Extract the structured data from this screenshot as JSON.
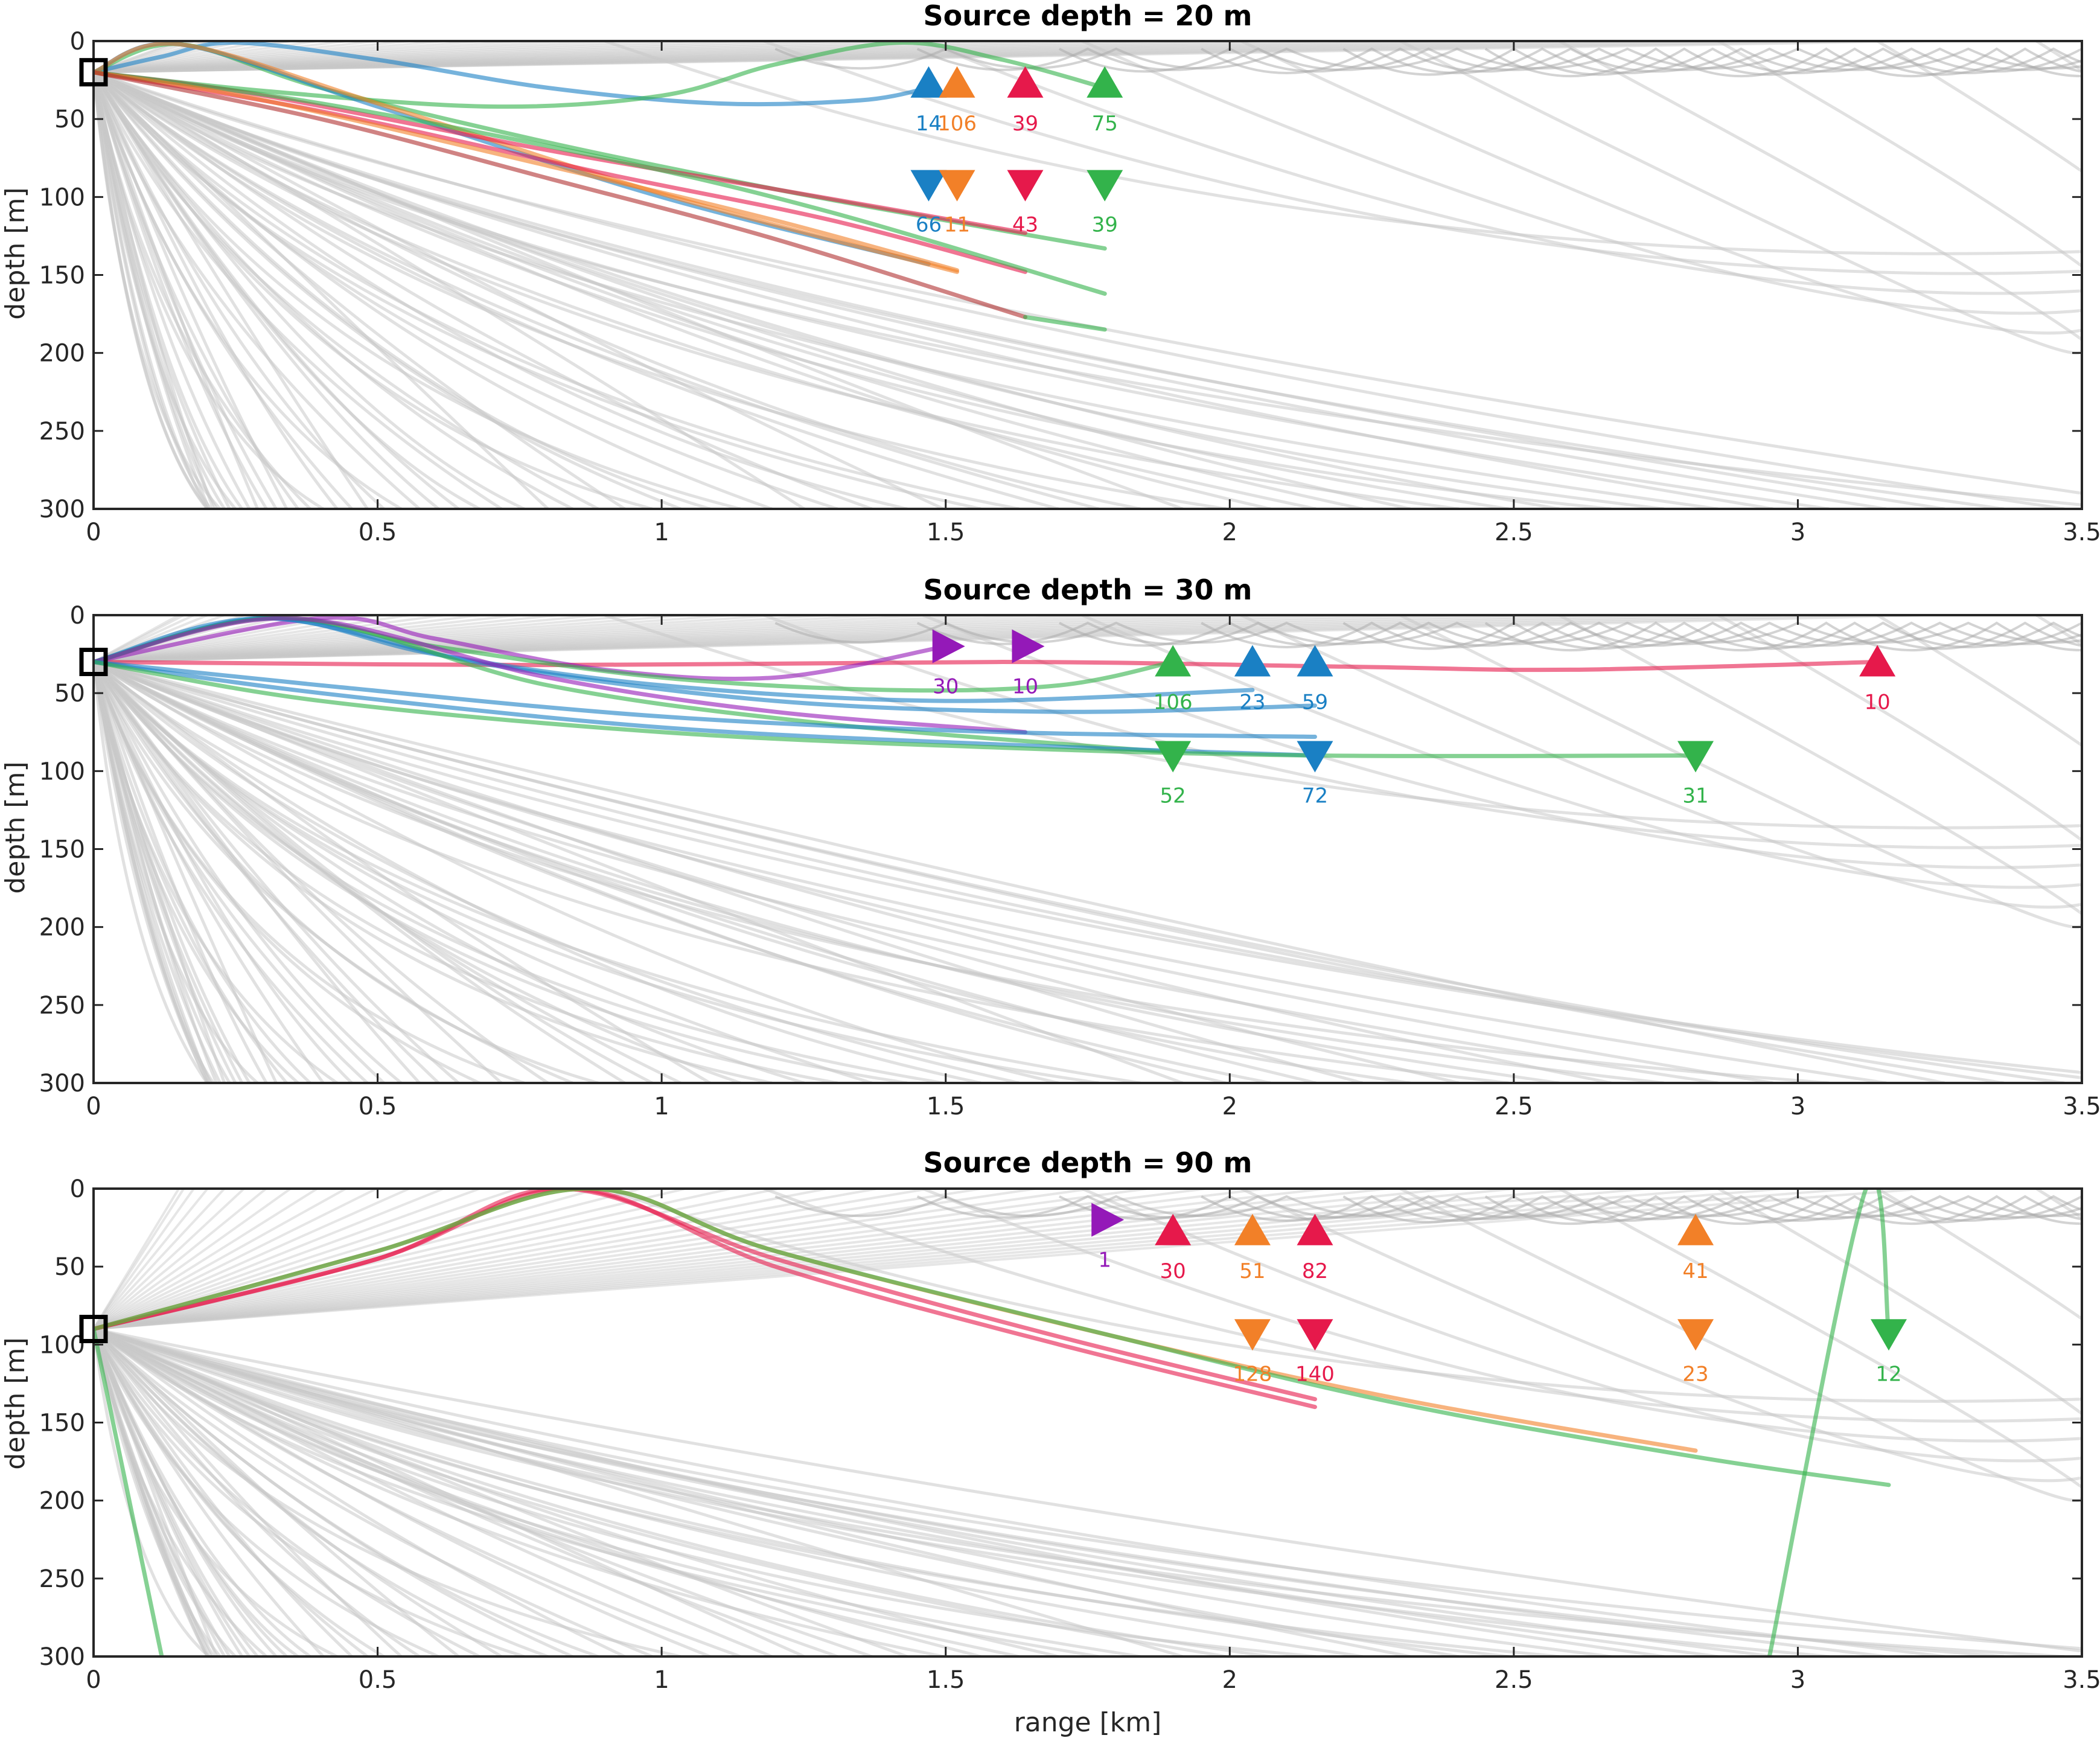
{
  "colors": {
    "blue": "#1a80c4",
    "orange": "#f28028",
    "red": "#e6194b",
    "green": "#33b34b",
    "purple": "#9419b8",
    "darkred": "#b03030",
    "background_ray": "#c8c8c8",
    "axes": "#262626",
    "source_marker": "#000000"
  },
  "chart_data": [
    {
      "type": "line",
      "title": "Source depth = 20 m",
      "xlabel": "",
      "ylabel": "depth [m]",
      "xlim": [
        0,
        3.5
      ],
      "ylim": [
        0,
        300
      ],
      "y_reversed": true,
      "x_ticks": [
        "0",
        "0.5",
        "1",
        "1.5",
        "2",
        "2.5",
        "3",
        "3.5"
      ],
      "y_ticks": [
        "0",
        "50",
        "100",
        "150",
        "200",
        "250",
        "300"
      ],
      "source": {
        "range": 0,
        "depth": 20
      },
      "receivers": [
        {
          "range": 1.47,
          "depth": 27,
          "marker": "up",
          "color": "blue",
          "label": "14"
        },
        {
          "range": 1.52,
          "depth": 27,
          "marker": "up",
          "color": "orange",
          "label": "106"
        },
        {
          "range": 1.64,
          "depth": 27,
          "marker": "up",
          "color": "red",
          "label": "39"
        },
        {
          "range": 1.78,
          "depth": 27,
          "marker": "up",
          "color": "green",
          "label": "75"
        },
        {
          "range": 1.47,
          "depth": 92,
          "marker": "down",
          "color": "blue",
          "label": "66"
        },
        {
          "range": 1.52,
          "depth": 92,
          "marker": "down",
          "color": "orange",
          "label": "11"
        },
        {
          "range": 1.64,
          "depth": 92,
          "marker": "down",
          "color": "red",
          "label": "43"
        },
        {
          "range": 1.78,
          "depth": 92,
          "marker": "down",
          "color": "green",
          "label": "39"
        }
      ],
      "series": [
        {
          "color": "blue",
          "x": [
            0,
            0.12,
            0.25,
            0.5,
            0.8,
            1.1,
            1.35,
            1.47
          ],
          "y": [
            20,
            10,
            1,
            12,
            30,
            40,
            38,
            30
          ]
        },
        {
          "color": "green",
          "x": [
            0,
            0.3,
            0.7,
            1.0,
            1.2,
            1.42,
            1.6,
            1.78
          ],
          "y": [
            20,
            32,
            42,
            35,
            15,
            1,
            12,
            30
          ]
        },
        {
          "color": "green",
          "x": [
            0,
            0.15,
            0.4,
            0.8,
            1.2,
            1.5,
            1.78
          ],
          "y": [
            20,
            2,
            30,
            65,
            95,
            115,
            133
          ]
        },
        {
          "color": "blue",
          "x": [
            0,
            0.15,
            0.5,
            1.0,
            1.47
          ],
          "y": [
            20,
            2,
            42,
            100,
            143
          ]
        },
        {
          "color": "orange",
          "x": [
            0,
            0.15,
            0.5,
            1.0,
            1.52
          ],
          "y": [
            20,
            2,
            40,
            98,
            148
          ]
        },
        {
          "color": "red",
          "x": [
            0,
            0.3,
            0.8,
            1.2,
            1.64
          ],
          "y": [
            20,
            35,
            70,
            95,
            123
          ]
        },
        {
          "color": "red",
          "x": [
            0,
            0.4,
            0.9,
            1.3,
            1.64
          ],
          "y": [
            20,
            45,
            85,
            115,
            148
          ]
        },
        {
          "color": "green",
          "x": [
            0,
            0.4,
            0.9,
            1.3,
            1.78
          ],
          "y": [
            20,
            40,
            75,
            110,
            162
          ]
        },
        {
          "color": "orange",
          "x": [
            0,
            0.3,
            0.8,
            1.2,
            1.52
          ],
          "y": [
            20,
            38,
            80,
            115,
            147
          ]
        },
        {
          "color": "darkred",
          "x": [
            0,
            0.4,
            0.8,
            1.2,
            1.64
          ],
          "y": [
            20,
            50,
            88,
            127,
            177
          ]
        },
        {
          "color": "green",
          "x": [
            1.64,
            1.78
          ],
          "y": [
            177,
            185
          ]
        }
      ]
    },
    {
      "type": "line",
      "title": "Source depth = 30 m",
      "xlabel": "",
      "ylabel": "depth [m]",
      "xlim": [
        0,
        3.5
      ],
      "ylim": [
        0,
        300
      ],
      "y_reversed": true,
      "x_ticks": [
        "0",
        "0.5",
        "1",
        "1.5",
        "2",
        "2.5",
        "3",
        "3.5"
      ],
      "y_ticks": [
        "0",
        "50",
        "100",
        "150",
        "200",
        "250",
        "300"
      ],
      "source": {
        "range": 0,
        "depth": 30
      },
      "receivers": [
        {
          "range": 1.5,
          "depth": 20,
          "marker": "right",
          "color": "purple",
          "label": "30"
        },
        {
          "range": 1.64,
          "depth": 20,
          "marker": "right",
          "color": "purple",
          "label": "10"
        },
        {
          "range": 1.9,
          "depth": 30,
          "marker": "up",
          "color": "green",
          "label": "106"
        },
        {
          "range": 2.04,
          "depth": 30,
          "marker": "up",
          "color": "blue",
          "label": "23"
        },
        {
          "range": 2.15,
          "depth": 30,
          "marker": "up",
          "color": "blue",
          "label": "59"
        },
        {
          "range": 3.14,
          "depth": 30,
          "marker": "up",
          "color": "red",
          "label": "10"
        },
        {
          "range": 1.9,
          "depth": 90,
          "marker": "down",
          "color": "green",
          "label": "52"
        },
        {
          "range": 2.15,
          "depth": 90,
          "marker": "down",
          "color": "blue",
          "label": "72"
        },
        {
          "range": 2.82,
          "depth": 90,
          "marker": "down",
          "color": "green",
          "label": "31"
        }
      ],
      "series": [
        {
          "color": "red",
          "x": [
            0,
            0.8,
            1.6,
            2.2,
            2.6,
            3.14
          ],
          "y": [
            30,
            32,
            30,
            33,
            35,
            30
          ]
        },
        {
          "color": "purple",
          "x": [
            0,
            0.4,
            0.6,
            0.9,
            1.2,
            1.5
          ],
          "y": [
            30,
            2,
            15,
            35,
            40,
            20
          ]
        },
        {
          "color": "green",
          "x": [
            0,
            0.3,
            0.6,
            1.0,
            1.4,
            1.7,
            1.9
          ],
          "y": [
            30,
            2,
            20,
            40,
            48,
            45,
            30
          ]
        },
        {
          "color": "blue",
          "x": [
            0,
            0.3,
            0.6,
            1.0,
            1.5,
            2.04
          ],
          "y": [
            30,
            2,
            25,
            45,
            55,
            48
          ]
        },
        {
          "color": "blue",
          "x": [
            0,
            0.3,
            0.7,
            1.2,
            1.7,
            2.15
          ],
          "y": [
            30,
            2,
            32,
            55,
            62,
            58
          ]
        },
        {
          "color": "green",
          "x": [
            0,
            0.35,
            0.8,
            1.3,
            1.9
          ],
          "y": [
            30,
            2,
            45,
            70,
            88
          ]
        },
        {
          "color": "purple",
          "x": [
            0,
            0.35,
            0.8,
            1.2,
            1.64
          ],
          "y": [
            30,
            2,
            40,
            62,
            75
          ]
        },
        {
          "color": "blue",
          "x": [
            0,
            0.4,
            1.0,
            1.6,
            2.15
          ],
          "y": [
            30,
            45,
            65,
            75,
            78
          ]
        },
        {
          "color": "blue",
          "x": [
            0,
            0.4,
            1.0,
            1.6,
            2.15
          ],
          "y": [
            30,
            50,
            72,
            83,
            90
          ]
        },
        {
          "color": "green",
          "x": [
            0,
            0.4,
            1.0,
            1.6,
            2.15,
            2.82
          ],
          "y": [
            30,
            55,
            75,
            85,
            90,
            90
          ]
        }
      ]
    },
    {
      "type": "line",
      "title": "Source depth = 90 m",
      "xlabel": "range [km]",
      "ylabel": "depth [m]",
      "xlim": [
        0,
        3.5
      ],
      "ylim": [
        0,
        300
      ],
      "y_reversed": true,
      "x_ticks": [
        "0",
        "0.5",
        "1",
        "1.5",
        "2",
        "2.5",
        "3",
        "3.5"
      ],
      "y_ticks": [
        "0",
        "50",
        "100",
        "150",
        "200",
        "250",
        "300"
      ],
      "source": {
        "range": 0,
        "depth": 90
      },
      "receivers": [
        {
          "range": 1.78,
          "depth": 20,
          "marker": "right",
          "color": "purple",
          "label": "1"
        },
        {
          "range": 1.9,
          "depth": 27,
          "marker": "up",
          "color": "red",
          "label": "30"
        },
        {
          "range": 2.04,
          "depth": 27,
          "marker": "up",
          "color": "orange",
          "label": "51"
        },
        {
          "range": 2.15,
          "depth": 27,
          "marker": "up",
          "color": "red",
          "label": "82"
        },
        {
          "range": 2.82,
          "depth": 27,
          "marker": "up",
          "color": "orange",
          "label": "41"
        },
        {
          "range": 2.04,
          "depth": 93,
          "marker": "down",
          "color": "orange",
          "label": "128"
        },
        {
          "range": 2.15,
          "depth": 93,
          "marker": "down",
          "color": "red",
          "label": "140"
        },
        {
          "range": 2.82,
          "depth": 93,
          "marker": "down",
          "color": "orange",
          "label": "23"
        },
        {
          "range": 3.16,
          "depth": 93,
          "marker": "down",
          "color": "green",
          "label": "12"
        }
      ],
      "series": [
        {
          "color": "red",
          "x": [
            0,
            0.5,
            0.82,
            1.2,
            1.7,
            2.15
          ],
          "y": [
            90,
            45,
            0,
            45,
            95,
            135
          ]
        },
        {
          "color": "red",
          "x": [
            0,
            0.5,
            0.84,
            1.2,
            1.7,
            2.15
          ],
          "y": [
            90,
            45,
            0,
            50,
            100,
            140
          ]
        },
        {
          "color": "orange",
          "x": [
            0,
            0.5,
            0.87,
            1.2,
            1.8,
            2.3,
            2.82
          ],
          "y": [
            90,
            40,
            0,
            40,
            95,
            135,
            168
          ]
        },
        {
          "color": "green",
          "x": [
            0,
            0.5,
            0.87,
            1.2,
            1.8,
            2.3,
            2.82,
            3.16
          ],
          "y": [
            90,
            40,
            0,
            40,
            95,
            138,
            172,
            190
          ]
        },
        {
          "color": "green",
          "x": [
            0,
            0.12
          ],
          "y": [
            90,
            300
          ]
        },
        {
          "color": "green",
          "x": [
            2.95,
            3.12,
            3.16
          ],
          "y": [
            300,
            0,
            93
          ]
        }
      ]
    }
  ]
}
